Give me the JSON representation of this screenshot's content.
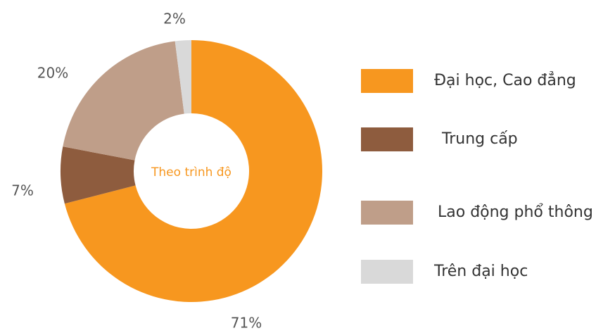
{
  "chart_data": {
    "type": "donut",
    "center_label": "Theo trình độ",
    "categories": [
      "Đại học, Cao đẳng",
      "Trung cấp",
      "Lao động phổ thông",
      "Trên đại học"
    ],
    "values": [
      71,
      7,
      20,
      2
    ],
    "value_labels": [
      "71%",
      "7%",
      "20%",
      "2%"
    ],
    "colors": [
      "#f7971f",
      "#8e5c3e",
      "#bf9e89",
      "#d9d9d9"
    ],
    "legend": "right"
  }
}
